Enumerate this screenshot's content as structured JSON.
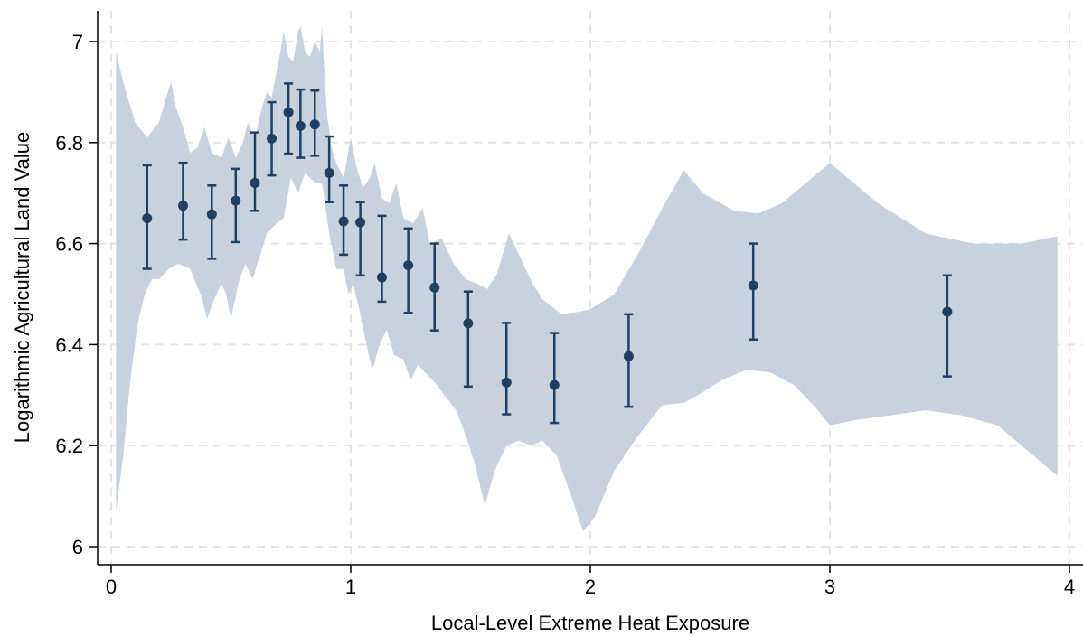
{
  "chart_data": {
    "type": "scatter",
    "xlabel": "Local-Level Extreme Heat Exposure",
    "ylabel": "Logarithmic Agricultural Land Value",
    "xlim": [
      0,
      4
    ],
    "ylim": [
      6,
      7
    ],
    "xticks": [
      0,
      1,
      2,
      3,
      4
    ],
    "xtick_labels": [
      "0",
      "1",
      "2",
      "3",
      "4"
    ],
    "yticks": [
      6,
      6.2,
      6.4,
      6.6,
      6.8,
      7
    ],
    "ytick_labels": [
      "6",
      "6.2",
      "6.4",
      "6.6",
      "6.8",
      "7"
    ],
    "grid": true,
    "legend": "none",
    "colors": {
      "point": "#1f3f63",
      "band": "#c8d2de",
      "grid": "#e4e4e4"
    },
    "points": [
      {
        "x": 0.15,
        "y": 6.65,
        "lo": 6.55,
        "hi": 6.755
      },
      {
        "x": 0.3,
        "y": 6.675,
        "lo": 6.608,
        "hi": 6.76
      },
      {
        "x": 0.42,
        "y": 6.658,
        "lo": 6.57,
        "hi": 6.715
      },
      {
        "x": 0.52,
        "y": 6.685,
        "lo": 6.603,
        "hi": 6.748
      },
      {
        "x": 0.6,
        "y": 6.72,
        "lo": 6.665,
        "hi": 6.82
      },
      {
        "x": 0.67,
        "y": 6.808,
        "lo": 6.735,
        "hi": 6.88
      },
      {
        "x": 0.74,
        "y": 6.86,
        "lo": 6.778,
        "hi": 6.917
      },
      {
        "x": 0.79,
        "y": 6.833,
        "lo": 6.77,
        "hi": 6.905
      },
      {
        "x": 0.85,
        "y": 6.836,
        "lo": 6.774,
        "hi": 6.903
      },
      {
        "x": 0.91,
        "y": 6.74,
        "lo": 6.682,
        "hi": 6.812
      },
      {
        "x": 0.97,
        "y": 6.644,
        "lo": 6.578,
        "hi": 6.715
      },
      {
        "x": 1.04,
        "y": 6.642,
        "lo": 6.537,
        "hi": 6.682
      },
      {
        "x": 1.13,
        "y": 6.533,
        "lo": 6.485,
        "hi": 6.655
      },
      {
        "x": 1.24,
        "y": 6.557,
        "lo": 6.463,
        "hi": 6.63
      },
      {
        "x": 1.35,
        "y": 6.513,
        "lo": 6.428,
        "hi": 6.6
      },
      {
        "x": 1.49,
        "y": 6.442,
        "lo": 6.317,
        "hi": 6.505
      },
      {
        "x": 1.65,
        "y": 6.325,
        "lo": 6.262,
        "hi": 6.443
      },
      {
        "x": 1.85,
        "y": 6.32,
        "lo": 6.245,
        "hi": 6.423
      },
      {
        "x": 2.16,
        "y": 6.377,
        "lo": 6.277,
        "hi": 6.46
      },
      {
        "x": 2.68,
        "y": 6.517,
        "lo": 6.41,
        "hi": 6.6
      },
      {
        "x": 3.49,
        "y": 6.465,
        "lo": 6.337,
        "hi": 6.537
      }
    ],
    "band": {
      "upper": [
        [
          0.02,
          6.98
        ],
        [
          0.05,
          6.92
        ],
        [
          0.1,
          6.84
        ],
        [
          0.15,
          6.81
        ],
        [
          0.2,
          6.84
        ],
        [
          0.23,
          6.89
        ],
        [
          0.25,
          6.92
        ],
        [
          0.27,
          6.87
        ],
        [
          0.3,
          6.83
        ],
        [
          0.33,
          6.78
        ],
        [
          0.36,
          6.79
        ],
        [
          0.39,
          6.83
        ],
        [
          0.42,
          6.78
        ],
        [
          0.46,
          6.77
        ],
        [
          0.49,
          6.81
        ],
        [
          0.52,
          6.77
        ],
        [
          0.55,
          6.8
        ],
        [
          0.57,
          6.84
        ],
        [
          0.6,
          6.81
        ],
        [
          0.63,
          6.87
        ],
        [
          0.65,
          6.9
        ],
        [
          0.67,
          6.89
        ],
        [
          0.69,
          6.94
        ],
        [
          0.71,
          6.99
        ],
        [
          0.72,
          7.02
        ],
        [
          0.74,
          6.97
        ],
        [
          0.76,
          6.96
        ],
        [
          0.78,
          7.02
        ],
        [
          0.79,
          7.03
        ],
        [
          0.81,
          6.98
        ],
        [
          0.83,
          6.97
        ],
        [
          0.85,
          7.0
        ],
        [
          0.87,
          6.98
        ],
        [
          0.88,
          7.03
        ],
        [
          0.9,
          6.86
        ],
        [
          0.92,
          6.79
        ],
        [
          0.94,
          6.76
        ],
        [
          0.97,
          6.73
        ],
        [
          1.0,
          6.81
        ],
        [
          1.02,
          6.76
        ],
        [
          1.05,
          6.71
        ],
        [
          1.08,
          6.73
        ],
        [
          1.1,
          6.76
        ],
        [
          1.13,
          6.69
        ],
        [
          1.16,
          6.68
        ],
        [
          1.19,
          6.72
        ],
        [
          1.22,
          6.65
        ],
        [
          1.26,
          6.64
        ],
        [
          1.3,
          6.67
        ],
        [
          1.33,
          6.6
        ],
        [
          1.38,
          6.61
        ],
        [
          1.43,
          6.56
        ],
        [
          1.48,
          6.53
        ],
        [
          1.53,
          6.52
        ],
        [
          1.57,
          6.51
        ],
        [
          1.61,
          6.54
        ],
        [
          1.66,
          6.62
        ],
        [
          1.7,
          6.58
        ],
        [
          1.76,
          6.52
        ],
        [
          1.8,
          6.49
        ],
        [
          1.88,
          6.46
        ],
        [
          1.95,
          6.465
        ],
        [
          2.0,
          6.47
        ],
        [
          2.1,
          6.5
        ],
        [
          2.2,
          6.58
        ],
        [
          2.3,
          6.67
        ],
        [
          2.39,
          6.745
        ],
        [
          2.47,
          6.7
        ],
        [
          2.6,
          6.665
        ],
        [
          2.7,
          6.66
        ],
        [
          2.8,
          6.68
        ],
        [
          2.9,
          6.72
        ],
        [
          3.0,
          6.76
        ],
        [
          3.1,
          6.72
        ],
        [
          3.2,
          6.68
        ],
        [
          3.4,
          6.62
        ],
        [
          3.6,
          6.6
        ],
        [
          3.8,
          6.6
        ],
        [
          3.95,
          6.615
        ]
      ],
      "lower": [
        [
          0.02,
          6.07
        ],
        [
          0.05,
          6.18
        ],
        [
          0.08,
          6.33
        ],
        [
          0.11,
          6.44
        ],
        [
          0.14,
          6.5
        ],
        [
          0.17,
          6.53
        ],
        [
          0.2,
          6.53
        ],
        [
          0.24,
          6.55
        ],
        [
          0.28,
          6.56
        ],
        [
          0.33,
          6.55
        ],
        [
          0.38,
          6.49
        ],
        [
          0.4,
          6.45
        ],
        [
          0.43,
          6.49
        ],
        [
          0.46,
          6.52
        ],
        [
          0.48,
          6.5
        ],
        [
          0.5,
          6.45
        ],
        [
          0.53,
          6.52
        ],
        [
          0.56,
          6.56
        ],
        [
          0.59,
          6.53
        ],
        [
          0.63,
          6.59
        ],
        [
          0.65,
          6.62
        ],
        [
          0.69,
          6.64
        ],
        [
          0.72,
          6.65
        ],
        [
          0.75,
          6.73
        ],
        [
          0.78,
          6.7
        ],
        [
          0.81,
          6.74
        ],
        [
          0.85,
          6.72
        ],
        [
          0.88,
          6.72
        ],
        [
          0.91,
          6.62
        ],
        [
          0.94,
          6.55
        ],
        [
          0.97,
          6.55
        ],
        [
          0.99,
          6.5
        ],
        [
          1.01,
          6.52
        ],
        [
          1.04,
          6.46
        ],
        [
          1.07,
          6.39
        ],
        [
          1.09,
          6.35
        ],
        [
          1.12,
          6.4
        ],
        [
          1.15,
          6.43
        ],
        [
          1.18,
          6.38
        ],
        [
          1.22,
          6.37
        ],
        [
          1.25,
          6.33
        ],
        [
          1.28,
          6.36
        ],
        [
          1.32,
          6.34
        ],
        [
          1.36,
          6.32
        ],
        [
          1.39,
          6.3
        ],
        [
          1.44,
          6.27
        ],
        [
          1.48,
          6.22
        ],
        [
          1.52,
          6.16
        ],
        [
          1.56,
          6.08
        ],
        [
          1.6,
          6.15
        ],
        [
          1.65,
          6.2
        ],
        [
          1.7,
          6.21
        ],
        [
          1.75,
          6.2
        ],
        [
          1.8,
          6.21
        ],
        [
          1.86,
          6.18
        ],
        [
          1.92,
          6.1
        ],
        [
          1.97,
          6.03
        ],
        [
          2.02,
          6.06
        ],
        [
          2.1,
          6.15
        ],
        [
          2.2,
          6.22
        ],
        [
          2.3,
          6.28
        ],
        [
          2.39,
          6.285
        ],
        [
          2.45,
          6.3
        ],
        [
          2.55,
          6.33
        ],
        [
          2.65,
          6.35
        ],
        [
          2.75,
          6.345
        ],
        [
          2.85,
          6.32
        ],
        [
          2.95,
          6.27
        ],
        [
          3.0,
          6.24
        ],
        [
          3.1,
          6.25
        ],
        [
          3.25,
          6.26
        ],
        [
          3.4,
          6.27
        ],
        [
          3.55,
          6.26
        ],
        [
          3.7,
          6.24
        ],
        [
          3.85,
          6.18
        ],
        [
          3.95,
          6.14
        ]
      ]
    }
  }
}
